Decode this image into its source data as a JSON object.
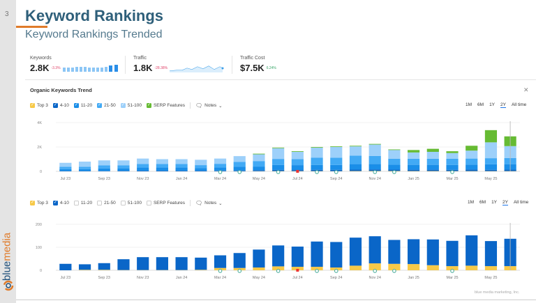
{
  "slide": {
    "number": "3",
    "title": "Keyword Rankings",
    "subtitle": "Keyword Rankings Trended",
    "logo": "bluemedia",
    "footer": "blue media marketing, Inc."
  },
  "metrics": [
    {
      "label": "Keywords",
      "value": "2.8K",
      "change": "-3.3%",
      "change_color": "#e0446a"
    },
    {
      "label": "Traffic",
      "value": "1.8K",
      "change": "-28.38%",
      "change_color": "#e0446a"
    },
    {
      "label": "Traffic Cost",
      "value": "$7.5K",
      "change": "6.24%",
      "change_color": "#3aa66a"
    }
  ],
  "section_title": "Organic Keywords Trend",
  "close_icon": "close-icon",
  "notes_label": "Notes",
  "ranges": [
    "1M",
    "6M",
    "1Y",
    "2Y",
    "All time"
  ],
  "selected_range": "2Y",
  "colors": {
    "top3": "#f7c948",
    "r4_10": "#0a66c8",
    "r11_20": "#1a8ee8",
    "r21_50": "#42aaf5",
    "r51_100": "#9dd0fa",
    "serp": "#66bb33",
    "accent": "#e07b2a",
    "title": "#2e5f7a"
  },
  "legend1": [
    {
      "label": "Top 3",
      "checked": true,
      "color": "#f7c948"
    },
    {
      "label": "4-10",
      "checked": true,
      "color": "#0a66c8"
    },
    {
      "label": "11-20",
      "checked": true,
      "color": "#1a8ee8"
    },
    {
      "label": "21-50",
      "checked": true,
      "color": "#42aaf5"
    },
    {
      "label": "51-100",
      "checked": true,
      "color": "#9dd0fa"
    },
    {
      "label": "SERP Features",
      "checked": true,
      "color": "#66bb33"
    }
  ],
  "legend2": [
    {
      "label": "Top 3",
      "checked": true,
      "color": "#f7c948"
    },
    {
      "label": "4-10",
      "checked": true,
      "color": "#0a66c8"
    },
    {
      "label": "11-20",
      "checked": false
    },
    {
      "label": "21-50",
      "checked": false
    },
    {
      "label": "51-100",
      "checked": false
    },
    {
      "label": "SERP Features",
      "checked": false
    }
  ],
  "chart_data": [
    {
      "type": "bar",
      "stacked": true,
      "yticks": [
        "0",
        "2K",
        "4K"
      ],
      "ylim": [
        0,
        4000
      ],
      "grid": true,
      "categories": [
        "Jul 23",
        "Aug 23",
        "Sep 23",
        "Oct 23",
        "Nov 23",
        "Dec 23",
        "Jan 24",
        "Feb 24",
        "Mar 24",
        "Apr 24",
        "May 24",
        "Jun 24",
        "Jul 24",
        "Aug 24",
        "Sep 24",
        "Oct 24",
        "Nov 24",
        "Dec 24",
        "Jan 25",
        "Feb 25",
        "Mar 25",
        "Apr 25",
        "May 25",
        "Jun 25"
      ],
      "xtick_labels": [
        "Jul 23",
        "Sep 23",
        "Nov 23",
        "Jan 24",
        "Mar 24",
        "May 24",
        "Jul 24",
        "Sep 24",
        "Nov 24",
        "Jan 25",
        "Mar 25",
        "May 25"
      ],
      "series": [
        {
          "name": "Top 3",
          "values": [
            5,
            5,
            5,
            5,
            5,
            5,
            5,
            5,
            10,
            10,
            15,
            20,
            20,
            20,
            15,
            25,
            30,
            30,
            25,
            25,
            20,
            20,
            20,
            20
          ]
        },
        {
          "name": "4-10",
          "values": [
            25,
            25,
            30,
            45,
            55,
            55,
            55,
            55,
            60,
            65,
            80,
            100,
            90,
            110,
            110,
            120,
            130,
            110,
            110,
            110,
            110,
            130,
            110,
            120
          ]
        },
        {
          "name": "11-20",
          "values": [
            150,
            150,
            200,
            200,
            250,
            250,
            250,
            200,
            250,
            300,
            300,
            400,
            400,
            400,
            400,
            450,
            450,
            400,
            400,
            400,
            400,
            400,
            450,
            450
          ]
        },
        {
          "name": "21-50",
          "values": [
            200,
            200,
            250,
            250,
            300,
            300,
            300,
            250,
            300,
            400,
            450,
            500,
            500,
            600,
            600,
            700,
            650,
            500,
            500,
            500,
            500,
            500,
            500,
            500
          ]
        },
        {
          "name": "51-100",
          "values": [
            320,
            420,
            415,
            400,
            440,
            390,
            390,
            440,
            430,
            475,
            555,
            880,
            590,
            820,
            875,
            755,
            940,
            710,
            515,
            565,
            470,
            650,
            1300,
            980
          ]
        },
        {
          "name": "SERP Features",
          "values": [
            0,
            0,
            0,
            0,
            0,
            0,
            0,
            0,
            0,
            0,
            50,
            50,
            50,
            50,
            50,
            50,
            50,
            50,
            200,
            250,
            150,
            400,
            1000,
            800
          ]
        }
      ]
    },
    {
      "type": "bar",
      "stacked": true,
      "yticks": [
        "0",
        "100",
        "200"
      ],
      "ylim": [
        0,
        200
      ],
      "grid": true,
      "categories": [
        "Jul 23",
        "Aug 23",
        "Sep 23",
        "Oct 23",
        "Nov 23",
        "Dec 23",
        "Jan 24",
        "Feb 24",
        "Mar 24",
        "Apr 24",
        "May 24",
        "Jun 24",
        "Jul 24",
        "Aug 24",
        "Sep 24",
        "Oct 24",
        "Nov 24",
        "Dec 24",
        "Jan 25",
        "Feb 25",
        "Mar 25",
        "Apr 25",
        "May 25",
        "Jun 25"
      ],
      "xtick_labels": [
        "Jul 23",
        "Sep 23",
        "Nov 23",
        "Jan 24",
        "Mar 24",
        "May 24",
        "Jul 24",
        "Sep 24",
        "Nov 24",
        "Jan 25",
        "Mar 25",
        "May 25"
      ],
      "series": [
        {
          "name": "Top 3",
          "values": [
            0,
            2,
            2,
            1,
            1,
            1,
            1,
            2,
            10,
            10,
            12,
            17,
            15,
            15,
            12,
            20,
            30,
            28,
            27,
            22,
            18,
            20,
            18,
            18
          ]
        },
        {
          "name": "4-10",
          "values": [
            28,
            24,
            29,
            47,
            56,
            56,
            56,
            53,
            55,
            65,
            78,
            91,
            88,
            110,
            111,
            122,
            118,
            104,
            108,
            112,
            110,
            132,
            109,
            119
          ]
        }
      ]
    }
  ],
  "annotations": {
    "google_update_months": [
      "Mar 24",
      "Apr 24",
      "Jun 24",
      "Aug 24",
      "Sep 24",
      "Nov 24",
      "Dec 24",
      "Mar 25"
    ],
    "flag_month": "Jul 24"
  }
}
